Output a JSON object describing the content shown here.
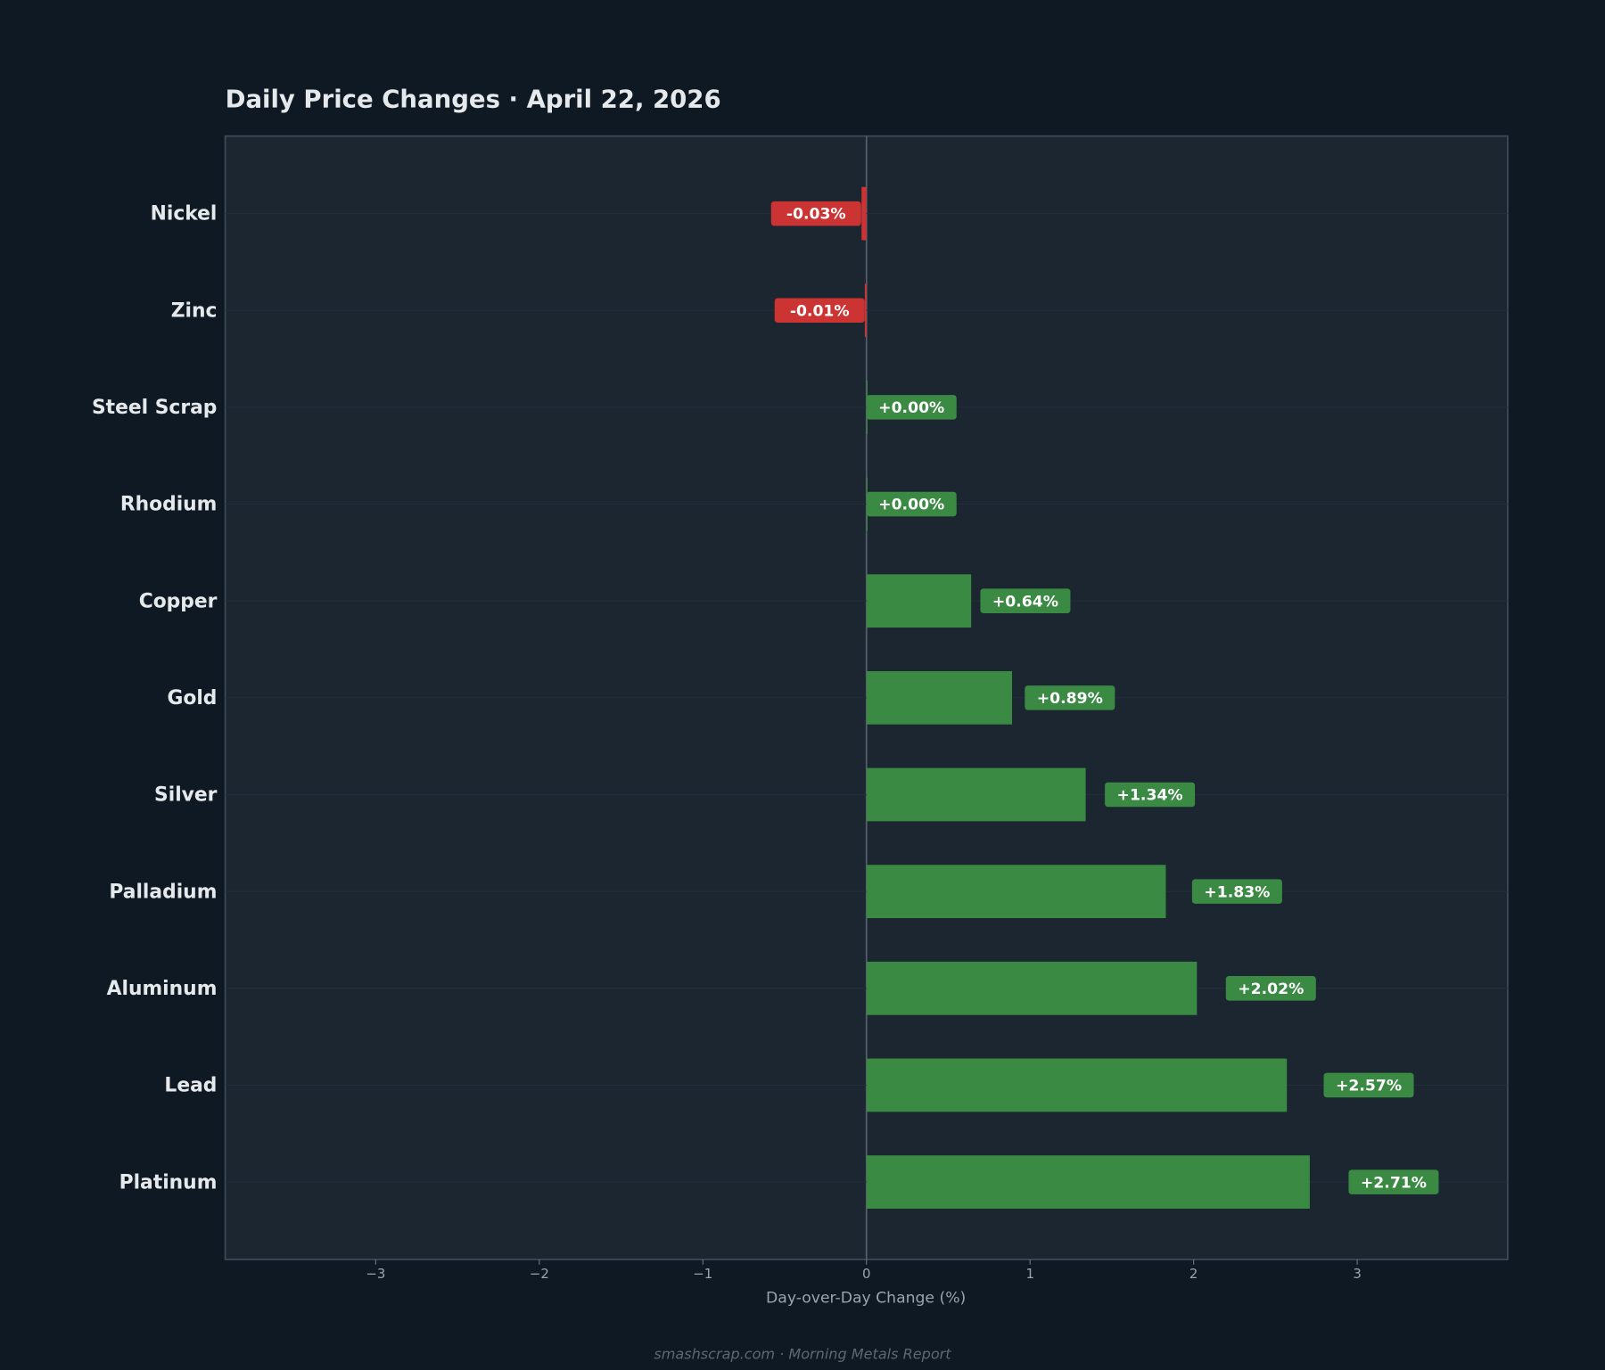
{
  "chart_data": {
    "type": "barh",
    "title": "Daily Price Changes  ·  April 22, 2026",
    "xlabel": "Day-over-Day Change (%)",
    "footer": "smashscrap.com  ·  Morning Metals Report",
    "categories": [
      "Nickel",
      "Zinc",
      "Steel Scrap",
      "Rhodium",
      "Copper",
      "Gold",
      "Silver",
      "Palladium",
      "Aluminum",
      "Lead",
      "Platinum"
    ],
    "values": [
      -0.03,
      -0.01,
      0.0,
      0.0,
      0.64,
      0.89,
      1.34,
      1.83,
      2.02,
      2.57,
      2.71
    ],
    "value_labels": [
      "-0.03%",
      "-0.01%",
      "+0.00%",
      "+0.00%",
      "+0.64%",
      "+0.89%",
      "+1.34%",
      "+1.83%",
      "+2.02%",
      "+2.57%",
      "+2.71%"
    ],
    "positive_color": "#3a8a44",
    "negative_color": "#cc3333",
    "xlim": [
      -3.92,
      3.92
    ],
    "xticks": [
      {
        "value": -3,
        "label": "−3"
      },
      {
        "value": -2,
        "label": "−2"
      },
      {
        "value": -1,
        "label": "−1"
      },
      0,
      1,
      2,
      3
    ]
  }
}
